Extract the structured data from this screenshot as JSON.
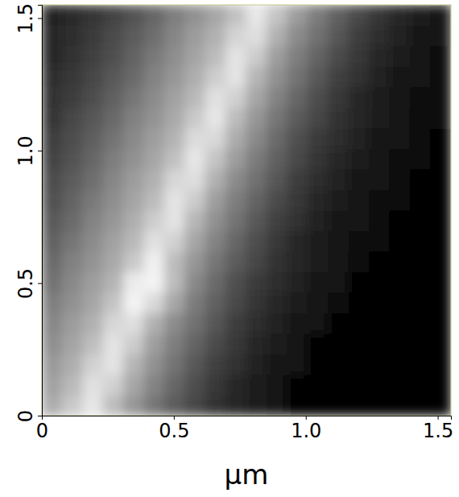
{
  "chart_data": {
    "type": "heatmap",
    "xlabel": "μm",
    "xlim": [
      0,
      1.55
    ],
    "ylim": [
      0,
      1.55
    ],
    "xticks": [
      0,
      0.5,
      {
        "value": 1,
        "label": "1.0"
      },
      1.5
    ],
    "yticks": [
      0,
      0.5,
      {
        "value": 1,
        "label": "1.0"
      },
      1.5
    ],
    "x": [
      0.03875,
      0.11625,
      0.19375,
      0.27125,
      0.34875,
      0.42625,
      0.50375,
      0.58125,
      0.65875,
      0.73625,
      0.81375,
      0.89125,
      0.96875,
      1.04625,
      1.12375,
      1.20125,
      1.27875,
      1.35625,
      1.43375,
      1.51125
    ],
    "y": [
      0.03875,
      0.11625,
      0.19375,
      0.27125,
      0.34875,
      0.42625,
      0.50375,
      0.58125,
      0.65875,
      0.73625,
      0.81375,
      0.89125,
      0.96875,
      1.04625,
      1.12375,
      1.20125,
      1.27875,
      1.35625,
      1.43375,
      1.51125
    ],
    "z": [
      [
        65,
        76,
        87,
        71,
        57,
        45,
        35,
        27,
        20,
        15,
        11,
        8,
        1,
        1,
        1,
        1,
        1,
        1,
        1,
        1
      ],
      [
        61,
        70,
        85,
        79,
        63,
        50,
        39,
        30,
        22,
        16,
        12,
        9,
        1,
        1,
        1,
        1,
        1,
        1,
        1,
        1
      ],
      [
        58,
        66,
        79,
        86,
        69,
        55,
        44,
        34,
        25,
        19,
        14,
        10,
        8,
        1,
        1,
        1,
        1,
        1,
        1,
        1
      ],
      [
        54,
        62,
        72,
        86,
        77,
        60,
        48,
        38,
        29,
        22,
        16,
        12,
        9,
        1,
        1,
        1,
        1,
        1,
        1,
        1
      ],
      [
        51,
        59,
        67,
        81,
        84,
        67,
        53,
        43,
        33,
        24,
        18,
        13,
        10,
        8,
        1,
        1,
        1,
        1,
        1,
        1
      ],
      [
        48,
        55,
        63,
        74,
        92,
        82,
        63,
        47,
        37,
        28,
        21,
        15,
        11,
        9,
        7,
        1,
        1,
        1,
        1,
        1
      ],
      [
        43,
        52,
        60,
        68,
        89,
        92,
        71,
        52,
        41,
        31,
        23,
        18,
        13,
        10,
        8,
        1,
        1,
        1,
        1,
        1
      ],
      [
        40,
        49,
        56,
        64,
        76,
        91,
        71,
        57,
        45,
        35,
        27,
        20,
        15,
        11,
        8,
        7,
        1,
        1,
        1,
        1
      ],
      [
        37,
        45,
        53,
        61,
        70,
        85,
        79,
        63,
        50,
        39,
        30,
        22,
        16,
        12,
        9,
        7,
        4,
        1,
        1,
        1
      ],
      [
        34,
        41,
        50,
        57,
        66,
        78,
        86,
        69,
        55,
        44,
        34,
        25,
        19,
        14,
        10,
        8,
        6,
        1,
        1,
        1
      ],
      [
        31,
        38,
        46,
        54,
        62,
        71,
        86,
        77,
        60,
        48,
        38,
        29,
        22,
        16,
        12,
        9,
        7,
        6,
        1,
        1
      ],
      [
        29,
        35,
        42,
        51,
        59,
        67,
        81,
        84,
        67,
        53,
        43,
        33,
        24,
        18,
        13,
        10,
        8,
        6,
        1,
        1
      ],
      [
        26,
        32,
        39,
        48,
        55,
        63,
        73,
        87,
        74,
        59,
        47,
        37,
        28,
        21,
        15,
        11,
        9,
        7,
        6,
        1
      ],
      [
        24,
        30,
        36,
        44,
        52,
        60,
        68,
        83,
        82,
        65,
        52,
        41,
        31,
        23,
        18,
        13,
        10,
        8,
        6,
        3
      ],
      [
        21,
        27,
        33,
        40,
        49,
        56,
        64,
        76,
        87,
        71,
        57,
        45,
        35,
        27,
        20,
        15,
        11,
        8,
        7,
        6
      ],
      [
        20,
        24,
        30,
        37,
        45,
        53,
        61,
        70,
        85,
        79,
        63,
        50,
        39,
        30,
        22,
        16,
        12,
        9,
        7,
        6
      ],
      [
        18,
        22,
        27,
        34,
        41,
        50,
        57,
        66,
        78,
        86,
        69,
        55,
        44,
        34,
        25,
        19,
        14,
        10,
        8,
        6
      ],
      [
        16,
        20,
        25,
        31,
        38,
        46,
        54,
        62,
        71,
        86,
        77,
        60,
        48,
        38,
        29,
        22,
        16,
        12,
        9,
        7
      ],
      [
        15,
        18,
        23,
        29,
        35,
        42,
        51,
        59,
        67,
        80,
        84,
        67,
        53,
        43,
        33,
        24,
        18,
        13,
        10,
        8
      ],
      [
        14,
        17,
        21,
        26,
        32,
        39,
        48,
        55,
        63,
        73,
        87,
        74,
        59,
        47,
        37,
        28,
        21,
        15,
        11,
        9
      ]
    ]
  }
}
